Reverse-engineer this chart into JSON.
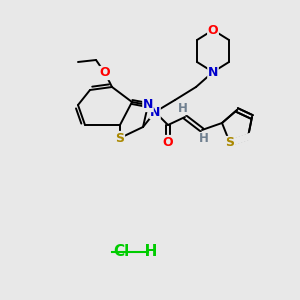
{
  "background_color": "#e8e8e8",
  "title": "",
  "bond_color": "#000000",
  "aromatic_bond_color": "#000000",
  "atom_colors": {
    "N": "#0000ff",
    "O": "#ff0000",
    "S": "#ccaa00",
    "S_thiophene": "#ccaa00",
    "C": "#000000",
    "H": "#808080",
    "Cl": "#00cc00"
  },
  "hcl_color": "#00cc00",
  "figsize": [
    3.0,
    3.0
  ],
  "dpi": 100
}
